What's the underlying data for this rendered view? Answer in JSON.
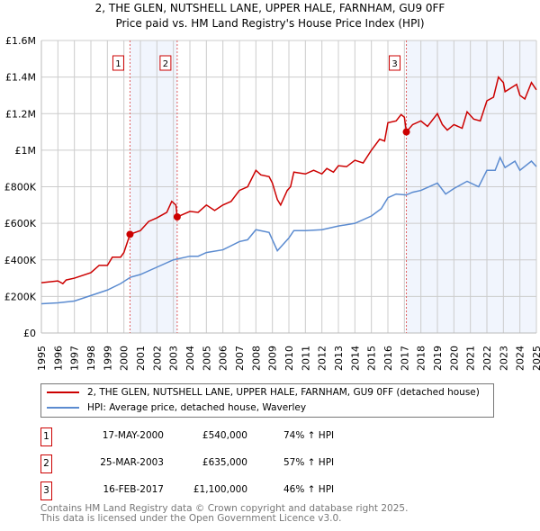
{
  "title": {
    "line1": "2, THE GLEN, NUTSHELL LANE, UPPER HALE, FARNHAM, GU9 0FF",
    "line2": "Price paid vs. HM Land Registry's House Price Index (HPI)"
  },
  "chart_data": {
    "type": "line",
    "title": "2, THE GLEN, NUTSHELL LANE, UPPER HALE, FARNHAM, GU9 0FF - Price paid vs. HM Land Registry's House Price Index (HPI)",
    "xlim": [
      1995,
      2025
    ],
    "ylim": [
      0,
      1600000
    ],
    "yticks": [
      {
        "v": 0,
        "label": "£0"
      },
      {
        "v": 200000,
        "label": "£200K"
      },
      {
        "v": 400000,
        "label": "£400K"
      },
      {
        "v": 600000,
        "label": "£600K"
      },
      {
        "v": 800000,
        "label": "£800K"
      },
      {
        "v": 1000000,
        "label": "£1M"
      },
      {
        "v": 1200000,
        "label": "£1.2M"
      },
      {
        "v": 1400000,
        "label": "£1.4M"
      },
      {
        "v": 1600000,
        "label": "£1.6M"
      }
    ],
    "xticks": [
      "1995",
      "1996",
      "1997",
      "1998",
      "1999",
      "2000",
      "2001",
      "2002",
      "2003",
      "2004",
      "2005",
      "2006",
      "2007",
      "2008",
      "2009",
      "2010",
      "2011",
      "2012",
      "2013",
      "2014",
      "2015",
      "2016",
      "2017",
      "2018",
      "2019",
      "2020",
      "2021",
      "2022",
      "2023",
      "2024",
      "2025"
    ],
    "grid": true,
    "shaded": [
      [
        2000.37,
        2003.23
      ],
      [
        2017.12,
        2025
      ]
    ],
    "series": [
      {
        "name": "2, THE GLEN, NUTSHELL LANE, UPPER HALE, FARNHAM, GU9 0FF (detached house)",
        "color": "#cc0000",
        "points": [
          [
            1995,
            275
          ],
          [
            1996,
            285
          ],
          [
            1996.3,
            270
          ],
          [
            1996.5,
            290
          ],
          [
            1997,
            300
          ],
          [
            1998,
            330
          ],
          [
            1998.5,
            370
          ],
          [
            1999,
            370
          ],
          [
            1999.3,
            415
          ],
          [
            1999.8,
            415
          ],
          [
            2000,
            440
          ],
          [
            2000.37,
            540
          ],
          [
            2001,
            560
          ],
          [
            2001.5,
            610
          ],
          [
            2002,
            630
          ],
          [
            2002.6,
            660
          ],
          [
            2002.9,
            720
          ],
          [
            2003.15,
            700
          ],
          [
            2003.23,
            635
          ],
          [
            2004,
            665
          ],
          [
            2004.5,
            660
          ],
          [
            2005,
            700
          ],
          [
            2005.5,
            670
          ],
          [
            2006,
            700
          ],
          [
            2006.5,
            720
          ],
          [
            2007,
            780
          ],
          [
            2007.5,
            800
          ],
          [
            2008,
            890
          ],
          [
            2008.3,
            865
          ],
          [
            2008.8,
            855
          ],
          [
            2009,
            820
          ],
          [
            2009.3,
            730
          ],
          [
            2009.5,
            700
          ],
          [
            2009.9,
            780
          ],
          [
            2010.1,
            800
          ],
          [
            2010.3,
            880
          ],
          [
            2011,
            870
          ],
          [
            2011.5,
            890
          ],
          [
            2012,
            870
          ],
          [
            2012.3,
            900
          ],
          [
            2012.7,
            880
          ],
          [
            2013,
            915
          ],
          [
            2013.5,
            910
          ],
          [
            2014,
            945
          ],
          [
            2014.5,
            930
          ],
          [
            2015,
            1000
          ],
          [
            2015.5,
            1060
          ],
          [
            2015.8,
            1050
          ],
          [
            2016,
            1150
          ],
          [
            2016.5,
            1160
          ],
          [
            2016.8,
            1195
          ],
          [
            2017,
            1180
          ],
          [
            2017.12,
            1100
          ],
          [
            2017.5,
            1140
          ],
          [
            2018,
            1160
          ],
          [
            2018.4,
            1130
          ],
          [
            2019,
            1200
          ],
          [
            2019.3,
            1140
          ],
          [
            2019.6,
            1110
          ],
          [
            2020,
            1140
          ],
          [
            2020.5,
            1120
          ],
          [
            2020.8,
            1210
          ],
          [
            2021.2,
            1170
          ],
          [
            2021.6,
            1160
          ],
          [
            2022,
            1270
          ],
          [
            2022.4,
            1290
          ],
          [
            2022.7,
            1400
          ],
          [
            2023,
            1370
          ],
          [
            2023.1,
            1320
          ],
          [
            2023.8,
            1360
          ],
          [
            2024,
            1300
          ],
          [
            2024.3,
            1280
          ],
          [
            2024.7,
            1370
          ],
          [
            2025,
            1330
          ]
        ]
      },
      {
        "name": "HPI: Average price, detached house, Waverley",
        "color": "#5b8bd0",
        "points": [
          [
            1995,
            160
          ],
          [
            1996,
            165
          ],
          [
            1997,
            175
          ],
          [
            1998,
            205
          ],
          [
            1999,
            235
          ],
          [
            1999.8,
            270
          ],
          [
            2000.4,
            305
          ],
          [
            2001,
            320
          ],
          [
            2002,
            360
          ],
          [
            2003,
            400
          ],
          [
            2004,
            420
          ],
          [
            2004.5,
            420
          ],
          [
            2005,
            440
          ],
          [
            2006,
            455
          ],
          [
            2007,
            500
          ],
          [
            2007.5,
            510
          ],
          [
            2008,
            565
          ],
          [
            2008.8,
            550
          ],
          [
            2009.3,
            450
          ],
          [
            2010,
            520
          ],
          [
            2010.3,
            560
          ],
          [
            2011,
            560
          ],
          [
            2012,
            565
          ],
          [
            2013,
            585
          ],
          [
            2014,
            600
          ],
          [
            2015,
            640
          ],
          [
            2015.6,
            680
          ],
          [
            2016,
            740
          ],
          [
            2016.5,
            760
          ],
          [
            2017.1,
            755
          ],
          [
            2017.5,
            770
          ],
          [
            2018,
            780
          ],
          [
            2019,
            820
          ],
          [
            2019.5,
            760
          ],
          [
            2020,
            790
          ],
          [
            2020.8,
            830
          ],
          [
            2021.5,
            800
          ],
          [
            2022,
            890
          ],
          [
            2022.5,
            890
          ],
          [
            2022.8,
            960
          ],
          [
            2023.1,
            905
          ],
          [
            2023.7,
            940
          ],
          [
            2024,
            890
          ],
          [
            2024.7,
            940
          ],
          [
            2025,
            910
          ]
        ]
      }
    ],
    "point_units": "thousands GBP",
    "sales": [
      {
        "id": "1",
        "x": 2000.37,
        "value": 540000
      },
      {
        "id": "2",
        "x": 2003.23,
        "value": 635000
      },
      {
        "id": "3",
        "x": 2017.12,
        "value": 1100000
      }
    ]
  },
  "legend": {
    "property": "2, THE GLEN, NUTSHELL LANE, UPPER HALE, FARNHAM, GU9 0FF (detached house)",
    "hpi": "HPI: Average price, detached house, Waverley"
  },
  "transactions": [
    {
      "id": "1",
      "date": "17-MAY-2000",
      "price": "£540,000",
      "hpi": "74% ↑ HPI"
    },
    {
      "id": "2",
      "date": "25-MAR-2003",
      "price": "£635,000",
      "hpi": "57% ↑ HPI"
    },
    {
      "id": "3",
      "date": "16-FEB-2017",
      "price": "£1,100,000",
      "hpi": "46% ↑ HPI"
    }
  ],
  "footer": {
    "line1": "Contains HM Land Registry data © Crown copyright and database right 2025.",
    "line2": "This data is licensed under the Open Government Licence v3.0."
  }
}
